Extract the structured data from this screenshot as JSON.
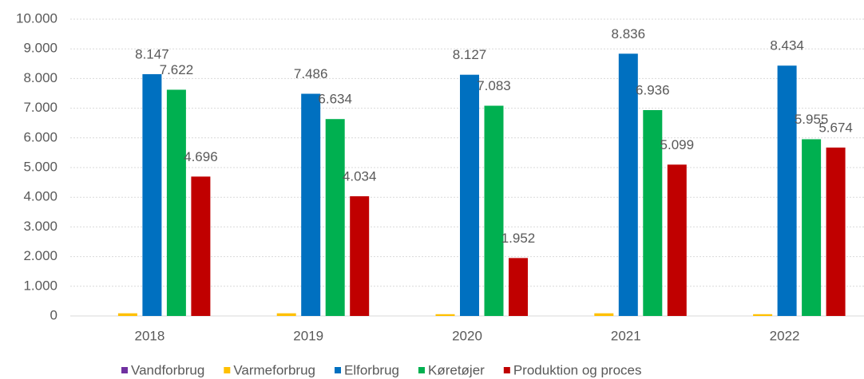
{
  "chart_data": {
    "type": "bar",
    "categories": [
      "2018",
      "2019",
      "2020",
      "2021",
      "2022"
    ],
    "series": [
      {
        "name": "Vandforbrug",
        "color": "#7030a0",
        "values": [
          0,
          0,
          0,
          0,
          0
        ]
      },
      {
        "name": "Varmeforbrug",
        "color": "#ffc000",
        "values": [
          90,
          90,
          60,
          90,
          60
        ]
      },
      {
        "name": "Elforbrug",
        "color": "#0070c0",
        "values": [
          8147,
          7486,
          8127,
          8836,
          8434
        ],
        "value_labels": [
          "8.147",
          "7.486",
          "8.127",
          "8.836",
          "8.434"
        ]
      },
      {
        "name": "Køretøjer",
        "color": "#00b050",
        "values": [
          7622,
          6634,
          7083,
          6936,
          5955
        ],
        "value_labels": [
          "7.622",
          "6.634",
          "7.083",
          "6.936",
          "5.955"
        ]
      },
      {
        "name": "Produktion og proces",
        "color": "#c00000",
        "values": [
          4696,
          4034,
          1952,
          5099,
          5674
        ],
        "value_labels": [
          "4.696",
          "4.034",
          "1.952",
          "5.099",
          "5.674"
        ]
      }
    ],
    "ylim": [
      0,
      10000
    ],
    "yticks": [
      0,
      {
        "value": 1000,
        "label": "1.000"
      },
      {
        "value": 2000,
        "label": "2.000"
      },
      {
        "value": 3000,
        "label": "3.000"
      },
      {
        "value": 4000,
        "label": "4.000"
      },
      {
        "value": 5000,
        "label": "5.000"
      },
      {
        "value": 6000,
        "label": "6.000"
      },
      {
        "value": 7000,
        "label": "7.000"
      },
      {
        "value": 8000,
        "label": "8.000"
      },
      {
        "value": 9000,
        "label": "9.000"
      },
      {
        "value": 10000,
        "label": "10.000"
      }
    ],
    "grid": true,
    "legend": "bottom"
  }
}
